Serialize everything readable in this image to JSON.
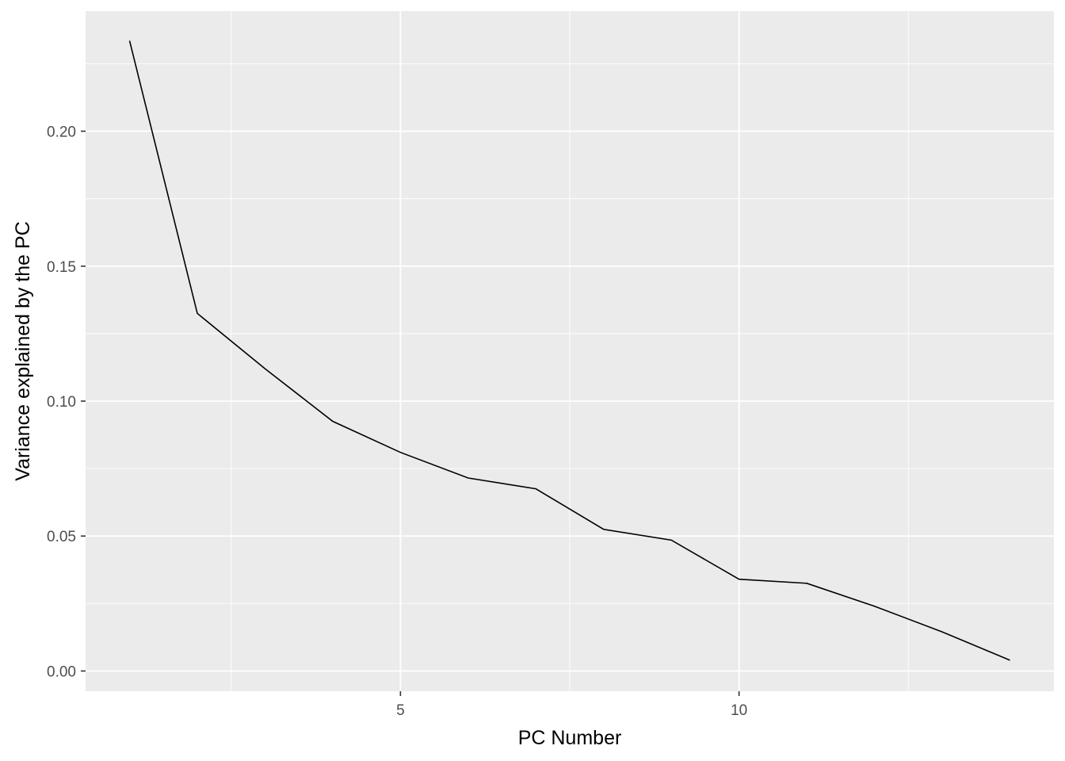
{
  "chart_data": {
    "type": "line",
    "title": "",
    "xlabel": "PC Number",
    "ylabel": "Variance explained by the PC",
    "x": [
      1,
      2,
      3,
      4,
      5,
      6,
      7,
      8,
      9,
      10,
      11,
      12,
      13,
      14
    ],
    "series": [
      {
        "values": [
          0.2335,
          0.1325,
          0.112,
          0.0925,
          0.081,
          0.0715,
          0.0675,
          0.0525,
          0.0485,
          0.034,
          0.0325,
          0.024,
          0.0145,
          0.004
        ]
      }
    ],
    "xlim": [
      0.35,
      14.65
    ],
    "ylim": [
      -0.0075,
      0.2445
    ],
    "x_ticks": [
      5,
      10
    ],
    "x_tick_labels": [
      "5",
      "10"
    ],
    "y_ticks": [
      0,
      0.05,
      0.1,
      0.15,
      0.2
    ],
    "y_tick_labels": [
      "0.00",
      "0.05",
      "0.10",
      "0.15",
      "0.20"
    ],
    "grid": true,
    "legend": "none",
    "colors": {
      "panel_background": "#ebebeb",
      "grid": "#ffffff",
      "line": "#000000",
      "tick_label": "#4d4d4d",
      "tick_mark": "#333333"
    }
  }
}
